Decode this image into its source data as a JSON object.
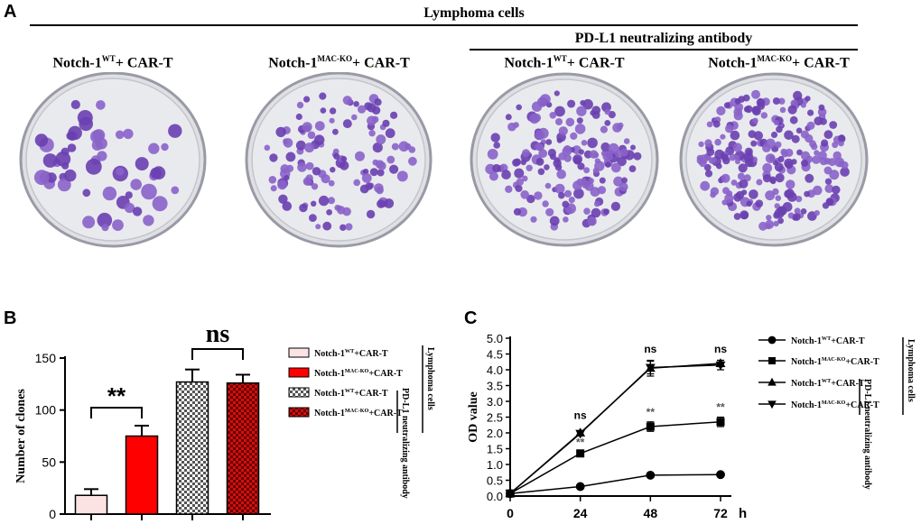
{
  "panel_a": {
    "letter": "A",
    "header": "Lymphoma cells",
    "subheader": "PD-L1 neutralizing antibody",
    "plates": [
      {
        "base": "Notch-1",
        "sup": "WT",
        "rest": "+ CAR-T"
      },
      {
        "base": "Notch-1",
        "sup": "MAC-KO",
        "rest": "+ CAR-T"
      },
      {
        "base": "Notch-1",
        "sup": "WT",
        "rest": "+ CAR-T"
      },
      {
        "base": "Notch-1",
        "sup": "MAC-KO",
        "rest": "+ CAR-T"
      }
    ]
  },
  "panel_b": {
    "letter": "B",
    "sig_labels": [
      "**",
      "ns"
    ],
    "legend": [
      {
        "base": "Notch-1",
        "sup": "WT",
        "rest": "+CAR-T"
      },
      {
        "base": "Notch-1",
        "sup": "MAC-KO",
        "rest": "+CAR-T"
      },
      {
        "base": "Notch-1",
        "sup": "WT",
        "rest": "+CAR-T"
      },
      {
        "base": "Notch-1",
        "sup": "MAC-KO",
        "rest": "+CAR-T"
      }
    ],
    "side_label_outer": "Lymphoma cells",
    "side_label_inner": "PD-L1 neutralizing antibody"
  },
  "panel_c": {
    "letter": "C",
    "legend": [
      {
        "base": "Notch-1",
        "sup": "WT",
        "rest": "+CAR-T"
      },
      {
        "base": "Notch-1",
        "sup": "MAC-KO",
        "rest": "+CAR-T"
      },
      {
        "base": "Notch-1",
        "sup": "WT",
        "rest": "+CAR-T"
      },
      {
        "base": "Notch-1",
        "sup": "MAC-KO",
        "rest": "+CAR-T"
      }
    ],
    "side_label_outer": "Lymphoma cells",
    "side_label_inner": "PD-L1 neutralizing antibody"
  },
  "colors": {
    "bar1": "#fbe3e3",
    "bar2": "#ff0000",
    "bar3": "#bdbdbd",
    "bar4": "#b00000",
    "colony": "#6a3fb0"
  },
  "chart_data": [
    {
      "type": "bar",
      "title": "",
      "xlabel": "",
      "ylabel": "Number of clones",
      "ylim": [
        0,
        150
      ],
      "yticks": [
        0,
        50,
        100,
        150
      ],
      "categories": [
        "Notch-1WT+CAR-T",
        "Notch-1MAC-KO+CAR-T",
        "Notch-1WT+CAR-T (PD-L1 Ab)",
        "Notch-1MAC-KO+CAR-T (PD-L1 Ab)"
      ],
      "values": [
        18,
        75,
        127,
        126
      ],
      "errors": [
        6,
        10,
        12,
        8
      ],
      "annotations": [
        {
          "between": [
            0,
            1
          ],
          "label": "**"
        },
        {
          "between": [
            2,
            3
          ],
          "label": "ns"
        }
      ]
    },
    {
      "type": "line",
      "title": "",
      "xlabel": "h",
      "ylabel": "OD value",
      "x": [
        0,
        24,
        48,
        72
      ],
      "ylim": [
        0.0,
        5.0
      ],
      "yticks": [
        "0.0",
        "0.5",
        "1.0",
        "1.5",
        "2.0",
        "2.5",
        "3.0",
        "3.5",
        "4.0",
        "4.5",
        "5.0"
      ],
      "series": [
        {
          "name": "Notch-1WT+CAR-T",
          "marker": "circle",
          "values": [
            0.08,
            0.3,
            0.66,
            0.68
          ],
          "errors": [
            0,
            0.02,
            0.03,
            0.03
          ]
        },
        {
          "name": "Notch-1MAC-KO+CAR-T",
          "marker": "square",
          "values": [
            0.08,
            1.35,
            2.2,
            2.35
          ],
          "errors": [
            0,
            0.05,
            0.15,
            0.15
          ]
        },
        {
          "name": "Notch-1WT+CAR-T (PD-L1 Ab)",
          "marker": "triangle-up",
          "values": [
            0.08,
            2.0,
            4.05,
            4.2
          ],
          "errors": [
            0,
            0.06,
            0.25,
            0.1
          ]
        },
        {
          "name": "Notch-1MAC-KO+CAR-T (PD-L1 Ab)",
          "marker": "triangle-down",
          "values": [
            0.08,
            1.98,
            4.07,
            4.15
          ],
          "errors": [
            0,
            0.05,
            0.2,
            0.15
          ]
        }
      ],
      "annotations": [
        {
          "x": 24,
          "label": "ns",
          "y": 2.45
        },
        {
          "x": 48,
          "label": "ns",
          "y": 4.55
        },
        {
          "x": 72,
          "label": "ns",
          "y": 4.55
        },
        {
          "x": 24,
          "label": "**",
          "y": 1.58
        },
        {
          "x": 48,
          "label": "**",
          "y": 2.55
        },
        {
          "x": 72,
          "label": "**",
          "y": 2.7
        }
      ]
    }
  ]
}
